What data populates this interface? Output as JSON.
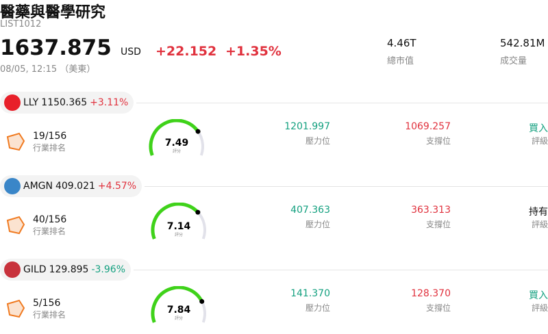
{
  "header": {
    "title": "醫藥與醫學研究",
    "code": "LIST1012",
    "price": "1637.875",
    "currency": "USD",
    "change": "+22.152",
    "change_pct": "+1.35%",
    "time": "08/05, 12:15 （美東）"
  },
  "stats": [
    {
      "value": "4.46T",
      "label": "總市值"
    },
    {
      "value": "542.81M",
      "label": "成交量"
    }
  ],
  "stocks": [
    {
      "ticker": "LLY",
      "price": "1150.365",
      "change": "+3.11%",
      "logo_color": "#e8202a",
      "rank": "19/156",
      "rank_label": "行業排名",
      "score": 7.49,
      "score_label": "評分",
      "resistance": "1201.997",
      "resistance_label": "壓力位",
      "support": "1069.257",
      "support_label": "支撐位",
      "rating": "買入",
      "rating_color": "#13a07f",
      "rating_label": "評級"
    },
    {
      "ticker": "AMGN",
      "price": "409.021",
      "change": "+4.57%",
      "logo_color": "#3a86c8",
      "rank": "40/156",
      "rank_label": "行業排名",
      "score": 7.14,
      "score_label": "評分",
      "resistance": "407.363",
      "resistance_label": "壓力位",
      "support": "363.313",
      "support_label": "支撐位",
      "rating": "持有",
      "rating_color": "#111111",
      "rating_label": "評級"
    },
    {
      "ticker": "GILD",
      "price": "129.895",
      "change": "-3.96%",
      "logo_color": "#c8323c",
      "rank": "5/156",
      "rank_label": "行業排名",
      "score": 7.84,
      "score_label": "評分",
      "resistance": "141.370",
      "resistance_label": "壓力位",
      "support": "128.370",
      "support_label": "支撐位",
      "rating": "買入",
      "rating_color": "#13a07f",
      "rating_label": "評級"
    }
  ]
}
